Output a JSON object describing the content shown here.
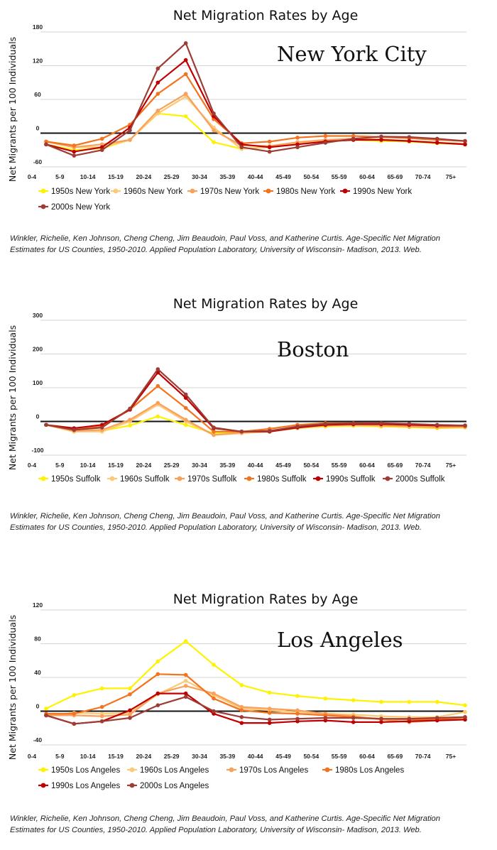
{
  "citation": {
    "line1": "Winkler, Richelie, Ken Johnson, Cheng Cheng, Jim Beaudoin, Paul Voss, and Katherine Curtis. Age-Specific Net Migration",
    "line2": "Estimates for US Counties, 1950-2010. Applied Population Laboratory, University of Wisconsin- Madison, 2013. Web."
  },
  "chart_data": [
    {
      "type": "line",
      "title": "Net Migration Rates by Age",
      "annotation": "New York City",
      "ylabel": "Net Migrants per 100 Individuals",
      "xlabel": "",
      "categories": [
        "0-4",
        "5-9",
        "10-14",
        "15-19",
        "20-24",
        "25-29",
        "30-34",
        "35-39",
        "40-44",
        "45-49",
        "50-54",
        "55-59",
        "60-64",
        "65-69",
        "70-74",
        "75+"
      ],
      "ylim": [
        -60,
        180
      ],
      "yticks": [
        -60,
        0,
        60,
        120,
        180
      ],
      "grid": true,
      "legend_position": "bottom",
      "series": [
        {
          "name": "1950s New York",
          "color": "#FFF200",
          "values": [
            -20,
            -30,
            -27,
            -12,
            35,
            30,
            -16,
            -28,
            -24,
            -18,
            -15,
            -12,
            -14,
            -15,
            -18,
            -20
          ]
        },
        {
          "name": "1960s New York",
          "color": "#FCC977",
          "values": [
            -15,
            -25,
            -25,
            -12,
            35,
            65,
            10,
            -28,
            -25,
            -18,
            -13,
            -11,
            -12,
            -14,
            -17,
            -20
          ]
        },
        {
          "name": "1970s New York",
          "color": "#F8A15A",
          "values": [
            -15,
            -25,
            -20,
            -12,
            40,
            70,
            5,
            -22,
            -23,
            -16,
            -12,
            -10,
            -11,
            -14,
            -17,
            -19
          ]
        },
        {
          "name": "1980s New York",
          "color": "#F27420",
          "values": [
            -15,
            -22,
            -10,
            15,
            70,
            105,
            25,
            -18,
            -15,
            -8,
            -5,
            -5,
            -7,
            -9,
            -12,
            -14
          ]
        },
        {
          "name": "1990s New York",
          "color": "#C00000",
          "values": [
            -20,
            -33,
            -25,
            10,
            90,
            130,
            30,
            -20,
            -25,
            -20,
            -15,
            -12,
            -12,
            -14,
            -17,
            -20
          ]
        },
        {
          "name": "2000s New York",
          "color": "#9E3D36",
          "values": [
            -20,
            -40,
            -30,
            5,
            115,
            160,
            35,
            -25,
            -33,
            -25,
            -17,
            -10,
            -6,
            -7,
            -10,
            -14
          ]
        }
      ]
    },
    {
      "type": "line",
      "title": "Net Migration Rates by Age",
      "annotation": "Boston",
      "ylabel": "Net Migrants per 100 Individuals",
      "xlabel": "",
      "categories": [
        "0-4",
        "5-9",
        "10-14",
        "15-19",
        "20-24",
        "25-29",
        "30-34",
        "35-39",
        "40-44",
        "45-49",
        "50-54",
        "55-59",
        "60-64",
        "65-69",
        "70-74",
        "75+"
      ],
      "ylim": [
        -100,
        300
      ],
      "yticks": [
        -100,
        0,
        100,
        200,
        300
      ],
      "grid": true,
      "legend_position": "bottom",
      "series": [
        {
          "name": "1950s Suffolk",
          "color": "#FFF200",
          "values": [
            -10,
            -30,
            -28,
            -12,
            15,
            -10,
            -35,
            -30,
            -28,
            -20,
            -15,
            -13,
            -15,
            -17,
            -20,
            -18
          ]
        },
        {
          "name": "1960s Suffolk",
          "color": "#FCC977",
          "values": [
            -10,
            -30,
            -30,
            0,
            50,
            0,
            -40,
            -35,
            -30,
            -20,
            -13,
            -11,
            -13,
            -15,
            -18,
            -17
          ]
        },
        {
          "name": "1970s Suffolk",
          "color": "#F8A15A",
          "values": [
            -10,
            -28,
            -25,
            5,
            55,
            5,
            -40,
            -33,
            -28,
            -18,
            -12,
            -10,
            -12,
            -15,
            -17,
            -16
          ]
        },
        {
          "name": "1980s Suffolk",
          "color": "#F27420",
          "values": [
            -10,
            -25,
            -15,
            35,
            105,
            40,
            -30,
            -30,
            -22,
            -10,
            -5,
            -5,
            -7,
            -10,
            -13,
            -14
          ]
        },
        {
          "name": "1990s Suffolk",
          "color": "#C00000",
          "values": [
            -10,
            -20,
            -10,
            35,
            145,
            70,
            -20,
            -30,
            -30,
            -18,
            -10,
            -8,
            -8,
            -10,
            -12,
            -12
          ]
        },
        {
          "name": "2000s Suffolk",
          "color": "#9E3D36",
          "values": [
            -10,
            -25,
            -18,
            38,
            155,
            80,
            -18,
            -30,
            -28,
            -15,
            -7,
            -5,
            -5,
            -7,
            -10,
            -12
          ]
        }
      ]
    },
    {
      "type": "line",
      "title": "Net Migration Rates by Age",
      "annotation": "Los Angeles",
      "ylabel": "Net Migrants per 100 Individuals",
      "xlabel": "",
      "categories": [
        "0-4",
        "5-9",
        "10-14",
        "15-19",
        "20-24",
        "25-29",
        "30-34",
        "35-39",
        "40-44",
        "45-49",
        "50-54",
        "55-59",
        "60-64",
        "65-69",
        "70-74",
        "75+"
      ],
      "ylim": [
        -40,
        120
      ],
      "yticks": [
        -40,
        0,
        40,
        80,
        120
      ],
      "grid": true,
      "legend_position": "bottom",
      "series": [
        {
          "name": "1950s Los Angeles",
          "color": "#FFF200",
          "values": [
            3,
            19,
            27,
            27,
            59,
            83,
            55,
            31,
            22,
            18,
            15,
            13,
            11,
            11,
            11,
            7
          ]
        },
        {
          "name": "1960s Los Angeles",
          "color": "#FCC977",
          "values": [
            -5,
            -2,
            -3,
            -2,
            20,
            36,
            19,
            3,
            1,
            -1,
            -3,
            -4,
            -6,
            -7,
            -7,
            -1
          ]
        },
        {
          "name": "1970s Los Angeles",
          "color": "#F8A15A",
          "values": [
            -5,
            -5,
            -6,
            -4,
            21,
            30,
            21,
            5,
            3,
            1,
            -3,
            -6,
            -10,
            -13,
            -11,
            -9
          ]
        },
        {
          "name": "1980s Los Angeles",
          "color": "#F27420",
          "values": [
            -3,
            -3,
            5,
            20,
            44,
            43,
            15,
            1,
            -2,
            -3,
            -5,
            -7,
            -9,
            -10,
            -10,
            -7
          ]
        },
        {
          "name": "1990s Los Angeles",
          "color": "#C00000",
          "values": [
            -5,
            -15,
            -12,
            1,
            21,
            21,
            -3,
            -14,
            -14,
            -12,
            -11,
            -13,
            -13,
            -12,
            -11,
            -10
          ]
        },
        {
          "name": "2000s Los Angeles",
          "color": "#9E3D36",
          "values": [
            -5,
            -15,
            -12,
            -8,
            7,
            17,
            0,
            -7,
            -10,
            -9,
            -8,
            -8,
            -9,
            -9,
            -8,
            -7
          ]
        }
      ]
    }
  ]
}
